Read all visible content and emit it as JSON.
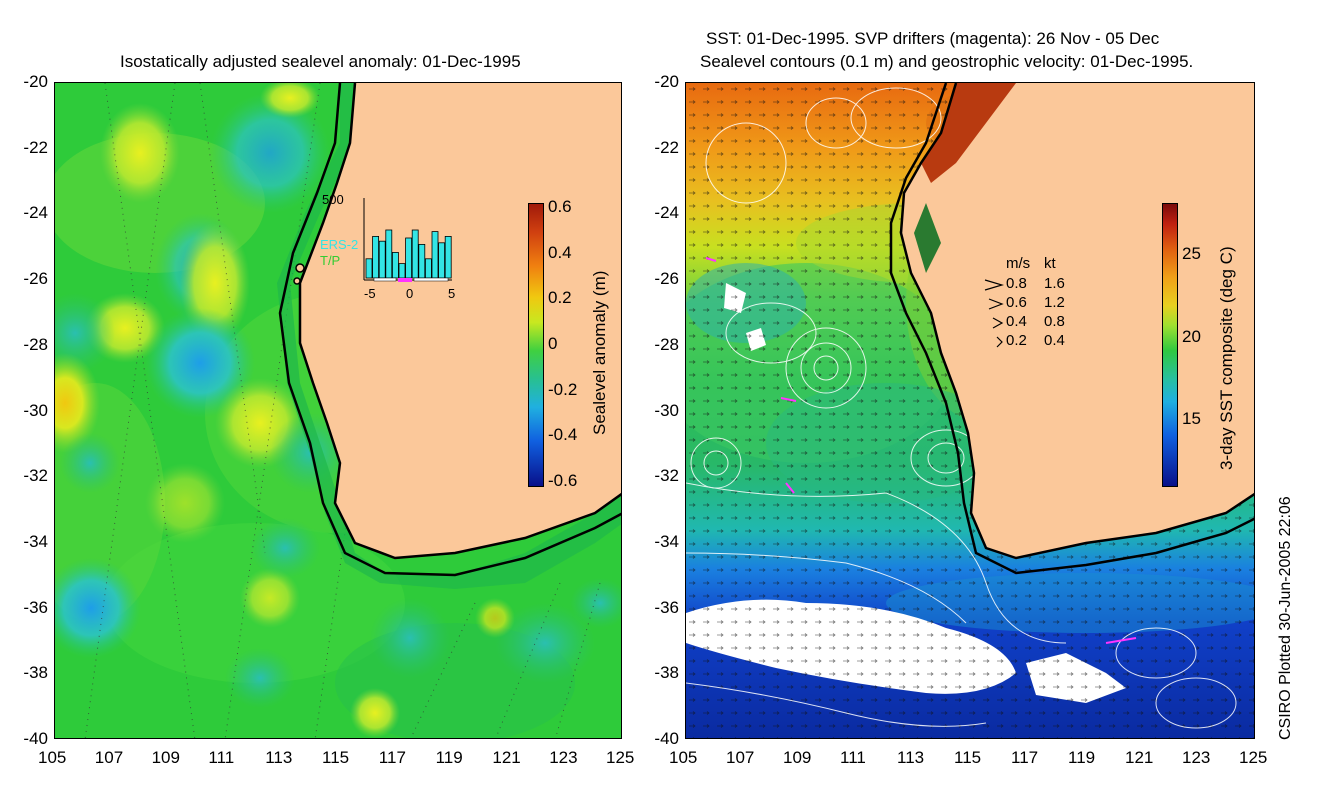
{
  "left_panel": {
    "title": "Isostatically adjusted sealevel anomaly: 01-Dec-1995",
    "colorbar_label": "Sealevel anomaly (m)",
    "colorbar_ticks": [
      "0.6",
      "0.4",
      "0.2",
      "0",
      "-0.2",
      "-0.4",
      "-0.6"
    ],
    "histogram": {
      "ymax_label": "500",
      "legend_ers": "ERS-2",
      "legend_tp": "T/P",
      "x_ticks": [
        "-5",
        "0",
        "5"
      ],
      "bar_values": [
        120,
        260,
        230,
        300,
        160,
        90,
        250,
        300,
        210,
        120,
        290,
        220,
        260
      ],
      "colors": {
        "ers": "#33e5e5",
        "tp": "#33cc33",
        "window": "#ff33ff"
      }
    }
  },
  "right_panel": {
    "title_line1": "SST: 01-Dec-1995. SVP drifters (magenta): 26 Nov - 05 Dec",
    "title_line2": "Sealevel contours (0.1 m) and geostrophic velocity: 01-Dec-1995.",
    "colorbar_label": "3-day SST composite (deg C)",
    "colorbar_ticks": [
      "25",
      "20",
      "15"
    ],
    "velocity_key": {
      "header_ms": "m/s",
      "header_kt": "kt",
      "rows": [
        {
          "ms": "0.8",
          "kt": "1.6"
        },
        {
          "ms": "0.6",
          "kt": "1.2"
        },
        {
          "ms": "0.4",
          "kt": "0.8"
        },
        {
          "ms": "0.2",
          "kt": "0.4"
        }
      ]
    }
  },
  "axes": {
    "y_ticks": [
      "-20",
      "-22",
      "-24",
      "-26",
      "-28",
      "-30",
      "-32",
      "-34",
      "-36",
      "-38",
      "-40"
    ],
    "x_ticks": [
      "105",
      "107",
      "109",
      "111",
      "113",
      "115",
      "117",
      "119",
      "121",
      "123",
      "125"
    ]
  },
  "footer": "CSIRO Plotted 30-Jun-2005 22:06",
  "colors": {
    "land": "#fbc89a",
    "ocean_green": "#2fcf2f",
    "coast": "#000000"
  }
}
